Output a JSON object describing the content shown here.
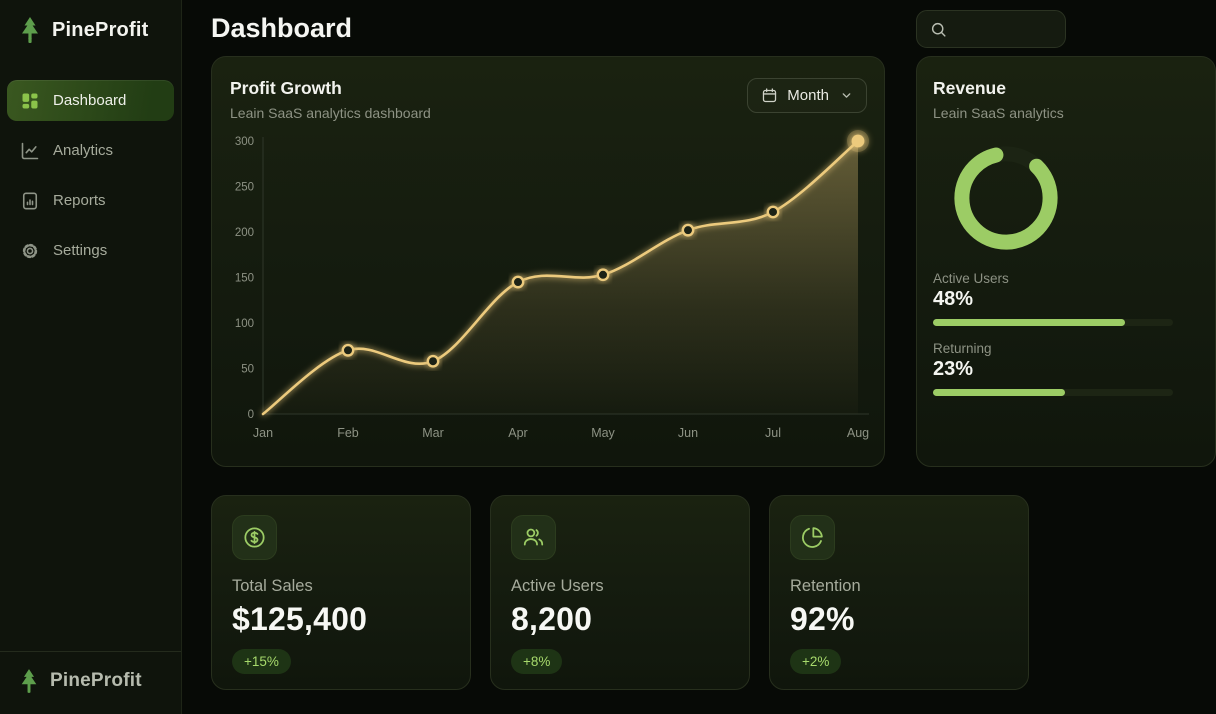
{
  "app": {
    "brand": "PineProfit",
    "footer_brand": "PineProfit"
  },
  "header": {
    "title": "Dashboard"
  },
  "sidebar": {
    "items": [
      {
        "label": "Dashboard",
        "icon": "dashboard-grid-icon",
        "active": true
      },
      {
        "label": "Analytics",
        "icon": "line-chart-icon",
        "active": false
      },
      {
        "label": "Reports",
        "icon": "report-file-icon",
        "active": false
      },
      {
        "label": "Settings",
        "icon": "gear-icon",
        "active": false
      }
    ]
  },
  "profit_card": {
    "title": "Profit Growth",
    "subtitle": "Leain SaaS analytics dashboard",
    "period_label": "Month"
  },
  "chart_data": {
    "type": "line",
    "title": "Profit Growth",
    "x": [
      "Jan",
      "Feb",
      "Mar",
      "Apr",
      "May",
      "Jun",
      "Jul",
      "Aug"
    ],
    "values": [
      0,
      70,
      58,
      145,
      153,
      202,
      222,
      300
    ],
    "ylim": [
      0,
      300
    ],
    "yticks": [
      0,
      50,
      100,
      150,
      200,
      250,
      300
    ],
    "grid": false,
    "legend": "none",
    "line_color": "#ecca7d",
    "area_fill": "gold fade to transparent",
    "highlight_last_point": true
  },
  "side_card": {
    "title": "Revenue",
    "subtitle": "Leain SaaS analytics",
    "donut_pct": 84,
    "stats": [
      {
        "label": "Active Users",
        "value": "48%",
        "bar_pct": 80
      },
      {
        "label": "Returning",
        "value": "23%",
        "bar_pct": 55
      }
    ]
  },
  "stat_cards": [
    {
      "icon": "dollar-circle-icon",
      "label": "Total Sales",
      "value": "$125,400",
      "delta": "+15%"
    },
    {
      "icon": "users-icon",
      "label": "Active Users",
      "value": "8,200",
      "delta": "+8%"
    },
    {
      "icon": "pie-chart-icon",
      "label": "Retention",
      "value": "92%",
      "delta": "+2%"
    }
  ],
  "colors": {
    "bg": "#070a06",
    "sidebar": "#0f140c",
    "accent": "#9ccc65",
    "accent_deep": "#8bc34a",
    "gold": "#ecca7d",
    "text": "#f3f4ef",
    "muted": "#a6ab9c",
    "dim": "#8d9284",
    "active1": "#3a5820",
    "active2": "#223d14",
    "badge_bg": "#1e3415",
    "badge_text": "#a7da6c",
    "axis": "#2f372a",
    "tree_green": "#5d9e4c"
  }
}
